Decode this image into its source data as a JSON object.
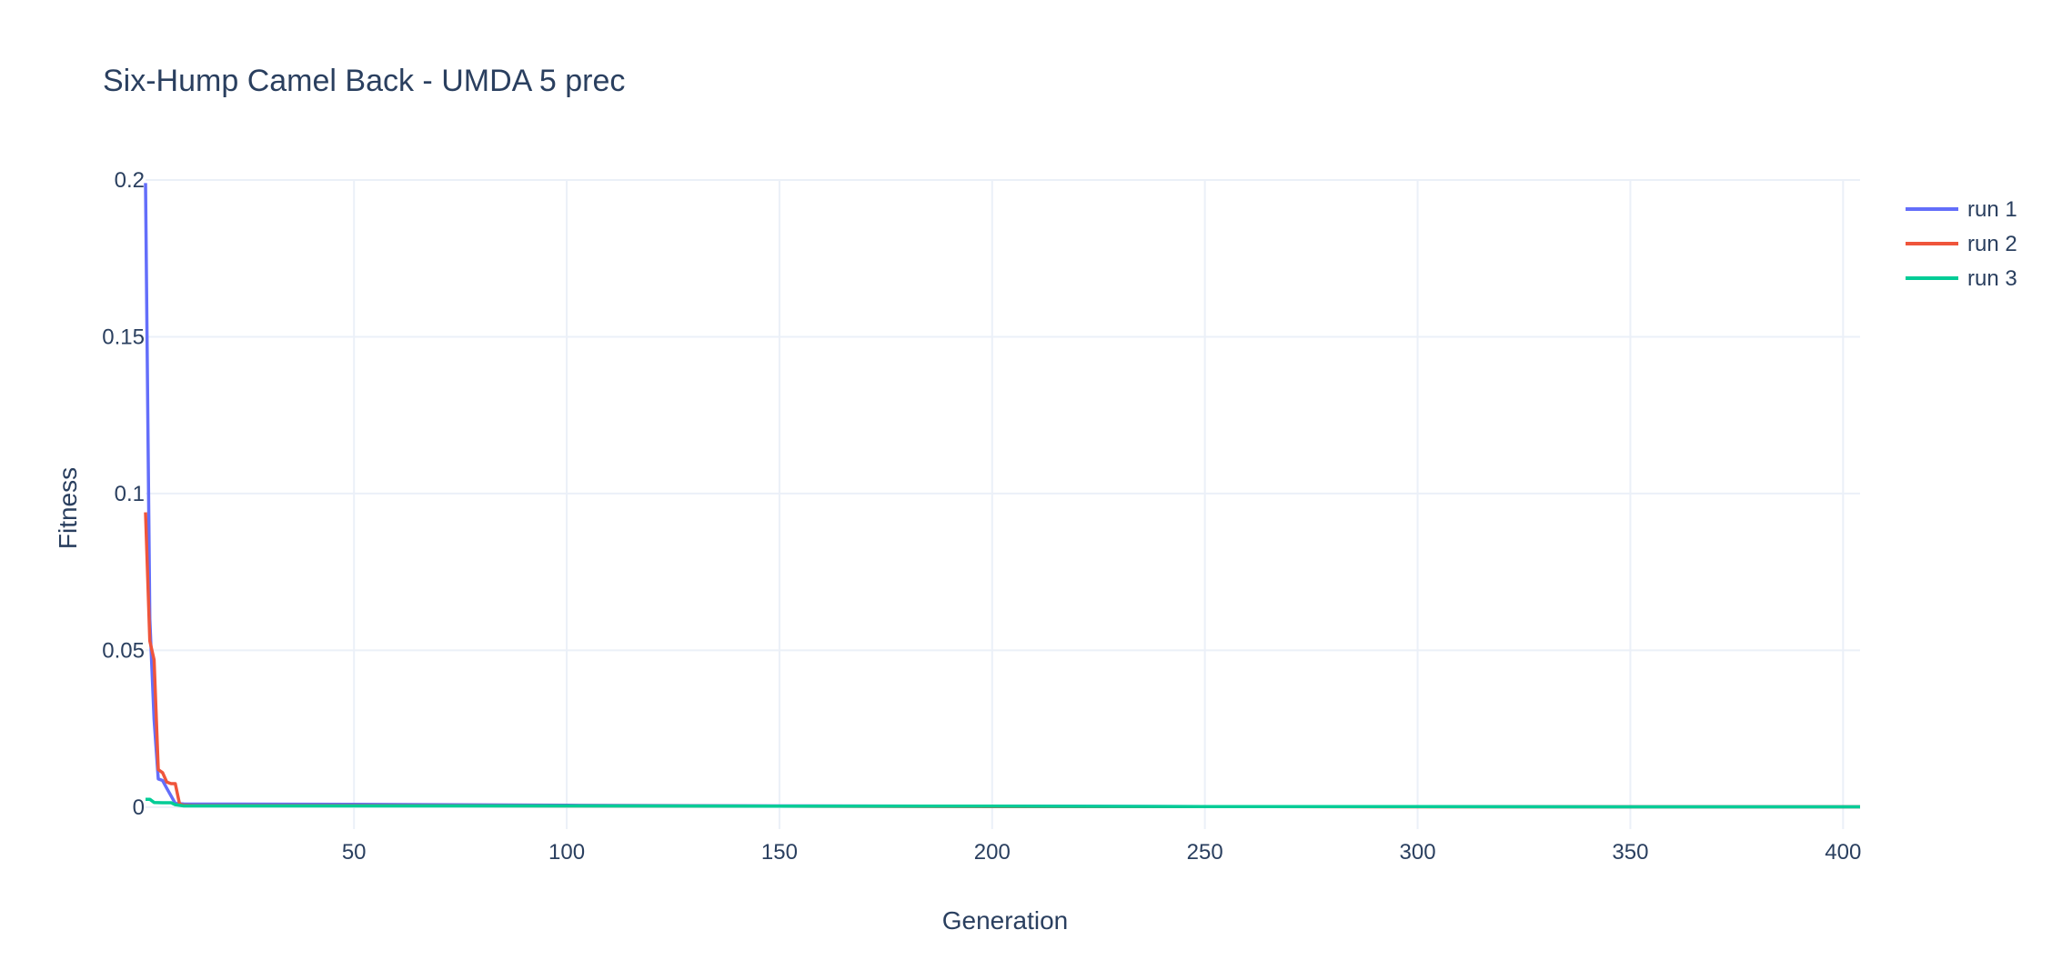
{
  "chart_data": {
    "type": "line",
    "title": "Six-Hump Camel Back - UMDA 5 prec",
    "xlabel": "Generation",
    "ylabel": "Fitness",
    "xlim": [
      1,
      404
    ],
    "ylim": [
      -0.007,
      0.2
    ],
    "xticks": [
      50,
      100,
      150,
      200,
      250,
      300,
      350,
      400
    ],
    "yticks": [
      0,
      0.05,
      0.1,
      0.15,
      0.2
    ],
    "ytick_labels": [
      "0",
      "0.05",
      "0.1",
      "0.15",
      "0.2"
    ],
    "grid": true,
    "legend_position": "top-right",
    "series": [
      {
        "name": "run 1",
        "color": "#636efa",
        "x": [
          1,
          2,
          3,
          4,
          5,
          6,
          8,
          10,
          50,
          100,
          150,
          200,
          250,
          300,
          350,
          404
        ],
        "y": [
          0.199,
          0.06,
          0.028,
          0.009,
          0.0085,
          0.006,
          0.0012,
          0.001,
          0.0009,
          0.0006,
          0.0004,
          0.0003,
          0.0002,
          0.0002,
          0.0001,
          0.0001
        ]
      },
      {
        "name": "run 2",
        "color": "#ef553b",
        "x": [
          1,
          2,
          3,
          4,
          5,
          6,
          7,
          8,
          9,
          10,
          12,
          50,
          100,
          150,
          200,
          250,
          300,
          350,
          404
        ],
        "y": [
          0.094,
          0.053,
          0.047,
          0.012,
          0.011,
          0.008,
          0.0075,
          0.0075,
          0.001,
          0.0006,
          0.0005,
          0.0005,
          0.0004,
          0.0003,
          0.0002,
          0.0002,
          0.0001,
          0.0001,
          0.0001
        ]
      },
      {
        "name": "run 3",
        "color": "#00cc96",
        "x": [
          1,
          2,
          3,
          5,
          7,
          8,
          10,
          20,
          50,
          100,
          150,
          200,
          250,
          300,
          350,
          404
        ],
        "y": [
          0.0025,
          0.0025,
          0.0015,
          0.0014,
          0.0014,
          0.0008,
          0.0004,
          0.0004,
          0.0004,
          0.0004,
          0.0003,
          0.0003,
          0.0002,
          0.0002,
          0.0001,
          0.0001
        ]
      }
    ]
  }
}
